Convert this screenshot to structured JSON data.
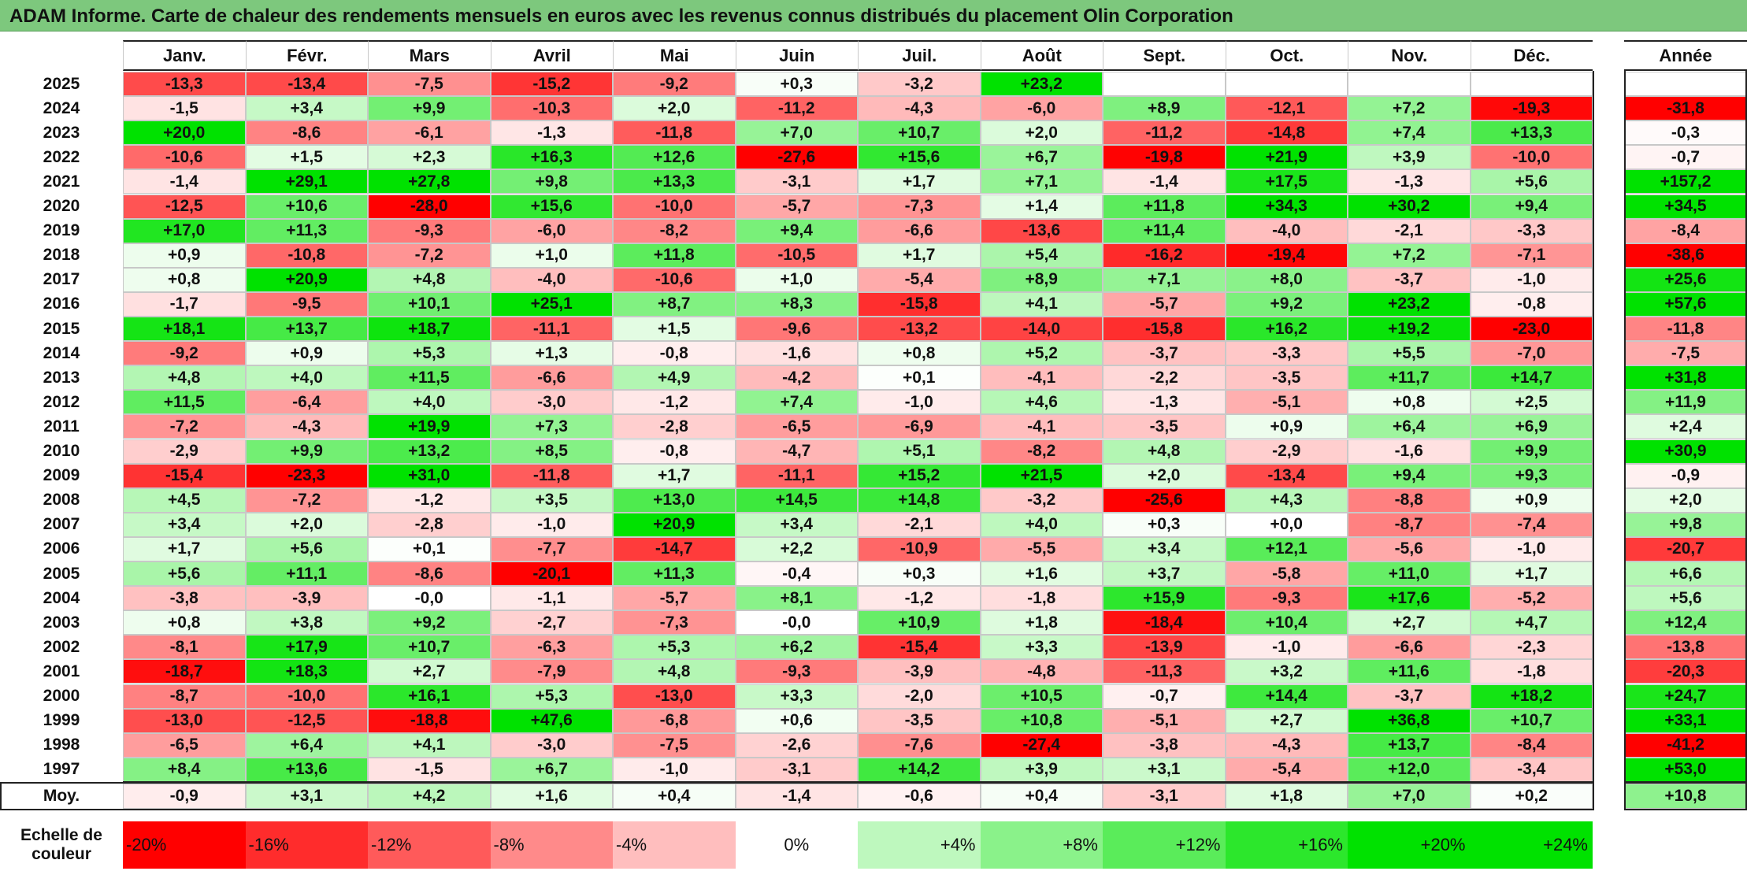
{
  "title": "ADAM Informe. Carte de chaleur des rendements mensuels en euros avec les revenus connus distribués du placement Olin Corporation",
  "chart_data": {
    "type": "heatmap",
    "title": "ADAM Informe. Carte de chaleur des rendements mensuels en euros avec les revenus connus distribués du placement Olin Corporation",
    "columns": [
      "Janv.",
      "Févr.",
      "Mars",
      "Avril",
      "Mai",
      "Juin",
      "Juil.",
      "Août",
      "Sept.",
      "Oct.",
      "Nov.",
      "Déc."
    ],
    "year_column": "Année",
    "rows": [
      {
        "year": "2025",
        "values": [
          "-13,3",
          "-13,4",
          "-7,5",
          "-15,2",
          "-9,2",
          "+0,3",
          "-3,2",
          "+23,2",
          "",
          "",
          "",
          ""
        ],
        "annual": ""
      },
      {
        "year": "2024",
        "values": [
          "-1,5",
          "+3,4",
          "+9,9",
          "-10,3",
          "+2,0",
          "-11,2",
          "-4,3",
          "-6,0",
          "+8,9",
          "-12,1",
          "+7,2",
          "-19,3"
        ],
        "annual": "-31,8"
      },
      {
        "year": "2023",
        "values": [
          "+20,0",
          "-8,6",
          "-6,1",
          "-1,3",
          "-11,8",
          "+7,0",
          "+10,7",
          "+2,0",
          "-11,2",
          "-14,8",
          "+7,4",
          "+13,3"
        ],
        "annual": "-0,3"
      },
      {
        "year": "2022",
        "values": [
          "-10,6",
          "+1,5",
          "+2,3",
          "+16,3",
          "+12,6",
          "-27,6",
          "+15,6",
          "+6,7",
          "-19,8",
          "+21,9",
          "+3,9",
          "-10,0"
        ],
        "annual": "-0,7"
      },
      {
        "year": "2021",
        "values": [
          "-1,4",
          "+29,1",
          "+27,8",
          "+9,8",
          "+13,3",
          "-3,1",
          "+1,7",
          "+7,1",
          "-1,4",
          "+17,5",
          "-1,3",
          "+5,6"
        ],
        "annual": "+157,2"
      },
      {
        "year": "2020",
        "values": [
          "-12,5",
          "+10,6",
          "-28,0",
          "+15,6",
          "-10,0",
          "-5,7",
          "-7,3",
          "+1,4",
          "+11,8",
          "+34,3",
          "+30,2",
          "+9,4"
        ],
        "annual": "+34,5"
      },
      {
        "year": "2019",
        "values": [
          "+17,0",
          "+11,3",
          "-9,3",
          "-6,0",
          "-8,2",
          "+9,4",
          "-6,6",
          "-13,6",
          "+11,4",
          "-4,0",
          "-2,1",
          "-3,3"
        ],
        "annual": "-8,4"
      },
      {
        "year": "2018",
        "values": [
          "+0,9",
          "-10,8",
          "-7,2",
          "+1,0",
          "+11,8",
          "-10,5",
          "+1,7",
          "+5,4",
          "-16,2",
          "-19,4",
          "+7,2",
          "-7,1"
        ],
        "annual": "-38,6"
      },
      {
        "year": "2017",
        "values": [
          "+0,8",
          "+20,9",
          "+4,8",
          "-4,0",
          "-10,6",
          "+1,0",
          "-5,4",
          "+8,9",
          "+7,1",
          "+8,0",
          "-3,7",
          "-1,0"
        ],
        "annual": "+25,6"
      },
      {
        "year": "2016",
        "values": [
          "-1,7",
          "-9,5",
          "+10,1",
          "+25,1",
          "+8,7",
          "+8,3",
          "-15,8",
          "+4,1",
          "-5,7",
          "+9,2",
          "+23,2",
          "-0,8"
        ],
        "annual": "+57,6"
      },
      {
        "year": "2015",
        "values": [
          "+18,1",
          "+13,7",
          "+18,7",
          "-11,1",
          "+1,5",
          "-9,6",
          "-13,2",
          "-14,0",
          "-15,8",
          "+16,2",
          "+19,2",
          "-23,0"
        ],
        "annual": "-11,8"
      },
      {
        "year": "2014",
        "values": [
          "-9,2",
          "+0,9",
          "+5,3",
          "+1,3",
          "-0,8",
          "-1,6",
          "+0,8",
          "+5,2",
          "-3,7",
          "-3,3",
          "+5,5",
          "-7,0"
        ],
        "annual": "-7,5"
      },
      {
        "year": "2013",
        "values": [
          "+4,8",
          "+4,0",
          "+11,5",
          "-6,6",
          "+4,9",
          "-4,2",
          "+0,1",
          "-4,1",
          "-2,2",
          "-3,5",
          "+11,7",
          "+14,7"
        ],
        "annual": "+31,8"
      },
      {
        "year": "2012",
        "values": [
          "+11,5",
          "-6,4",
          "+4,0",
          "-3,0",
          "-1,2",
          "+7,4",
          "-1,0",
          "+4,6",
          "-1,3",
          "-5,1",
          "+0,8",
          "+2,5"
        ],
        "annual": "+11,9"
      },
      {
        "year": "2011",
        "values": [
          "-7,2",
          "-4,3",
          "+19,9",
          "+7,3",
          "-2,8",
          "-6,5",
          "-6,9",
          "-4,1",
          "-3,5",
          "+0,9",
          "+6,4",
          "+6,9"
        ],
        "annual": "+2,4"
      },
      {
        "year": "2010",
        "values": [
          "-2,9",
          "+9,9",
          "+13,2",
          "+8,5",
          "-0,8",
          "-4,7",
          "+5,1",
          "-8,2",
          "+4,8",
          "-2,9",
          "-1,6",
          "+9,9"
        ],
        "annual": "+30,9"
      },
      {
        "year": "2009",
        "values": [
          "-15,4",
          "-23,3",
          "+31,0",
          "-11,8",
          "+1,7",
          "-11,1",
          "+15,2",
          "+21,5",
          "+2,0",
          "-13,4",
          "+9,4",
          "+9,3"
        ],
        "annual": "-0,9"
      },
      {
        "year": "2008",
        "values": [
          "+4,5",
          "-7,2",
          "-1,2",
          "+3,5",
          "+13,0",
          "+14,5",
          "+14,8",
          "-3,2",
          "-25,6",
          "+4,3",
          "-8,8",
          "+0,9"
        ],
        "annual": "+2,0"
      },
      {
        "year": "2007",
        "values": [
          "+3,4",
          "+2,0",
          "-2,8",
          "-1,0",
          "+20,9",
          "+3,4",
          "-2,1",
          "+4,0",
          "+0,3",
          "+0,0",
          "-8,7",
          "-7,4"
        ],
        "annual": "+9,8"
      },
      {
        "year": "2006",
        "values": [
          "+1,7",
          "+5,6",
          "+0,1",
          "-7,7",
          "-14,7",
          "+2,2",
          "-10,9",
          "-5,5",
          "+3,4",
          "+12,1",
          "-5,6",
          "-1,0"
        ],
        "annual": "-20,7"
      },
      {
        "year": "2005",
        "values": [
          "+5,6",
          "+11,1",
          "-8,6",
          "-20,1",
          "+11,3",
          "-0,4",
          "+0,3",
          "+1,6",
          "+3,7",
          "-5,8",
          "+11,0",
          "+1,7"
        ],
        "annual": "+6,6"
      },
      {
        "year": "2004",
        "values": [
          "-3,8",
          "-3,9",
          "-0,0",
          "-1,1",
          "-5,7",
          "+8,1",
          "-1,2",
          "-1,8",
          "+15,9",
          "-9,3",
          "+17,6",
          "-5,2"
        ],
        "annual": "+5,6"
      },
      {
        "year": "2003",
        "values": [
          "+0,8",
          "+3,8",
          "+9,2",
          "-2,7",
          "-7,3",
          "-0,0",
          "+10,9",
          "+1,8",
          "-18,4",
          "+10,4",
          "+2,7",
          "+4,7"
        ],
        "annual": "+12,4"
      },
      {
        "year": "2002",
        "values": [
          "-8,1",
          "+17,9",
          "+10,7",
          "-6,3",
          "+5,3",
          "+6,2",
          "-15,4",
          "+3,3",
          "-13,9",
          "-1,0",
          "-6,6",
          "-2,3"
        ],
        "annual": "-13,8"
      },
      {
        "year": "2001",
        "values": [
          "-18,7",
          "+18,3",
          "+2,7",
          "-7,9",
          "+4,8",
          "-9,3",
          "-3,9",
          "-4,8",
          "-11,3",
          "+3,2",
          "+11,6",
          "-1,8"
        ],
        "annual": "-20,3"
      },
      {
        "year": "2000",
        "values": [
          "-8,7",
          "-10,0",
          "+16,1",
          "+5,3",
          "-13,0",
          "+3,3",
          "-2,0",
          "+10,5",
          "-0,7",
          "+14,4",
          "-3,7",
          "+18,2"
        ],
        "annual": "+24,7"
      },
      {
        "year": "1999",
        "values": [
          "-13,0",
          "-12,5",
          "-18,8",
          "+47,6",
          "-6,8",
          "+0,6",
          "-3,5",
          "+10,8",
          "-5,1",
          "+2,7",
          "+36,8",
          "+10,7"
        ],
        "annual": "+33,1"
      },
      {
        "year": "1998",
        "values": [
          "-6,5",
          "+6,4",
          "+4,1",
          "-3,0",
          "-7,5",
          "-2,6",
          "-7,6",
          "-27,4",
          "-3,8",
          "-4,3",
          "+13,7",
          "-8,4"
        ],
        "annual": "-41,2"
      },
      {
        "year": "1997",
        "values": [
          "+8,4",
          "+13,6",
          "-1,5",
          "+6,7",
          "-1,0",
          "-3,1",
          "+14,2",
          "+3,9",
          "+3,1",
          "-5,4",
          "+12,0",
          "-3,4"
        ],
        "annual": "+53,0"
      }
    ],
    "average": {
      "label": "Moy.",
      "values": [
        "-0,9",
        "+3,1",
        "+4,2",
        "+1,6",
        "+0,4",
        "-1,4",
        "-0,6",
        "+0,4",
        "-3,1",
        "+1,8",
        "+7,0",
        "+0,2"
      ],
      "annual": "+10,8"
    },
    "scale": {
      "label_line1": "Echelle de",
      "label_line2": "couleur",
      "stops": [
        {
          "label": "-20%",
          "value": -20
        },
        {
          "label": "-16%",
          "value": -16
        },
        {
          "label": "-12%",
          "value": -12
        },
        {
          "label": "-8%",
          "value": -8
        },
        {
          "label": "-4%",
          "value": -4
        },
        {
          "label": "0%",
          "value": 0
        },
        {
          "label": "+4%",
          "value": 4
        },
        {
          "label": "+8%",
          "value": 8
        },
        {
          "label": "+12%",
          "value": 12
        },
        {
          "label": "+16%",
          "value": 16
        },
        {
          "label": "+20%",
          "value": 20
        },
        {
          "label": "+24%",
          "value": 24
        }
      ]
    },
    "colors": {
      "negative_max": "#ff0000",
      "neutral": "#ffffff",
      "positive_max": "#00e000",
      "title_background": "#7dc87d"
    }
  }
}
